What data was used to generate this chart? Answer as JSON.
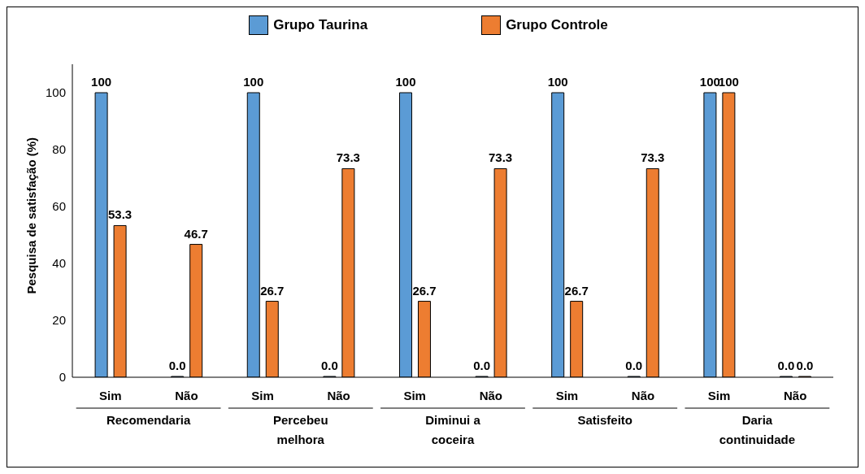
{
  "chart_data": {
    "type": "bar",
    "ylabel": "Pesquisa de satisfação (%)",
    "categories": [
      "Sim",
      "Não",
      "Sim",
      "Não",
      "Sim",
      "Não",
      "Sim",
      "Não",
      "Sim",
      "Não"
    ],
    "annotations": [
      "Recomendaria",
      "Percebeu melhora",
      "Diminui a coceira",
      "Satisfeito",
      "Daria continuidade"
    ],
    "series": [
      {
        "name": "Grupo Taurina",
        "color": "#5b9bd5",
        "values": [
          100,
          0,
          100,
          0,
          100,
          0,
          100,
          0,
          100,
          0
        ],
        "value_labels": [
          "100",
          "0.0",
          "100",
          "0.0",
          "100",
          "0.0",
          "100",
          "0.0",
          "100",
          "0.0"
        ]
      },
      {
        "name": "Grupo Controle",
        "color": "#ed7d31",
        "values": [
          53.3,
          46.7,
          26.7,
          73.3,
          26.7,
          73.3,
          26.7,
          73.3,
          100,
          0
        ],
        "value_labels": [
          "53.3",
          "46.7",
          "26.7",
          "73.3",
          "26.7",
          "73.3",
          "26.7",
          "73.3",
          "100",
          "0.0"
        ]
      }
    ],
    "ylim": [
      0,
      110
    ],
    "yticks": [
      0,
      20,
      40,
      60,
      80,
      100
    ],
    "grid": false,
    "legend": "top"
  }
}
